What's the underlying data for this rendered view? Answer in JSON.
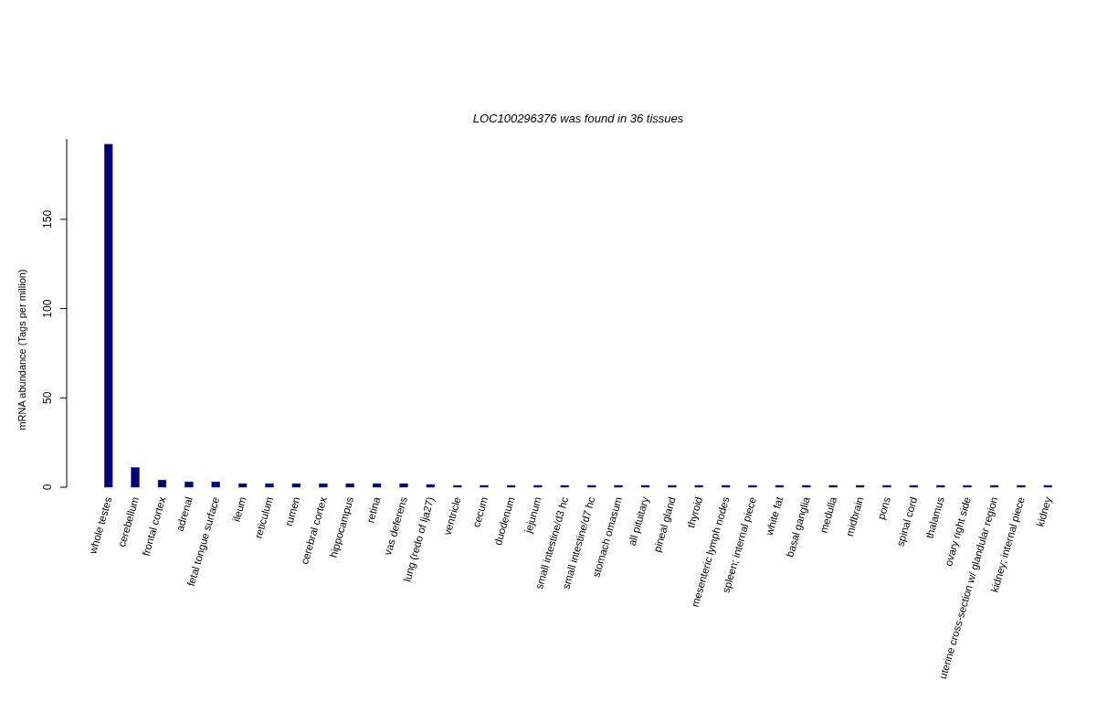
{
  "chart_data": {
    "type": "bar",
    "title": "LOC100296376  was found in  36  tissues",
    "ylabel": "mRNA abundance (Tags per million)",
    "categories": [
      "whole testes",
      "cerebellum",
      "frontal cortex",
      "adrenal",
      "fetal tongue surface",
      "ileum",
      "reticulum",
      "rumen",
      "cerebral cortex",
      "hippocampus",
      "retina",
      "vas deferens",
      "lung (redo of lja27)",
      "ventricle",
      "cecum",
      "duodenum",
      "jejunum",
      "small intestine/d3 hc",
      "small intestine/d7 hc",
      "stomach omasum",
      "all pituitary",
      "pineal gland",
      "thyroid",
      "mesenteric lymph nodes",
      "spleen; internal piece",
      "white fat",
      "basal ganglia",
      "medulla",
      "midbrain",
      "pons",
      "spinal cord",
      "thalamus",
      "ovary right side",
      "uterine cross-section w/ glandular region",
      "kidney; internal piece",
      "kidney"
    ],
    "values": [
      192,
      11,
      4,
      3,
      3,
      2,
      2,
      2,
      2,
      2,
      2,
      2,
      1.5,
      1,
      1,
      1,
      1,
      1,
      1,
      1,
      1,
      1,
      1,
      1,
      1,
      1,
      1,
      1,
      1,
      1,
      1,
      1,
      1,
      1,
      1,
      1
    ],
    "color": "#000080",
    "ylim": [
      0,
      195
    ],
    "yticks": [
      0,
      50,
      100,
      150
    ]
  }
}
